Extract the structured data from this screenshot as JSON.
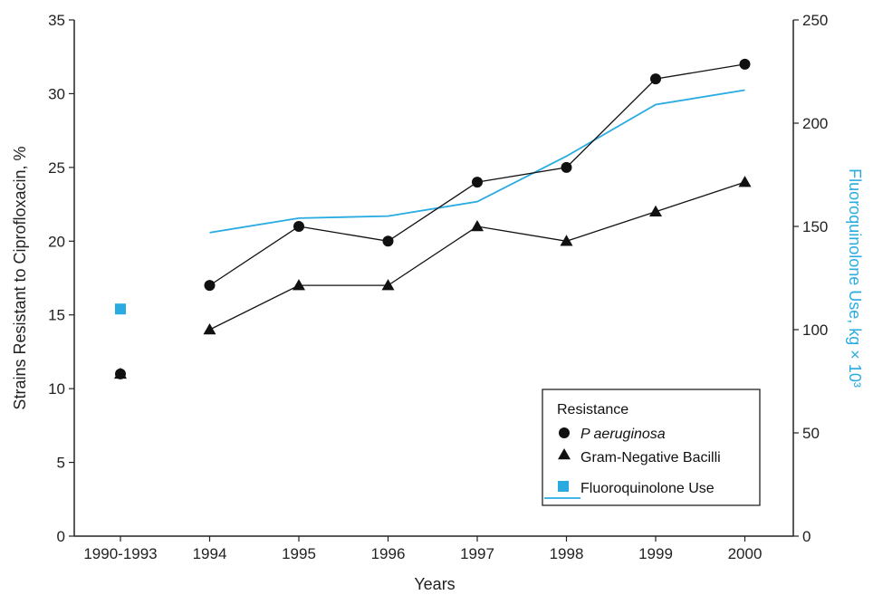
{
  "chart_data": {
    "type": "line",
    "categories": [
      "1990-1993",
      "1994",
      "1995",
      "1996",
      "1997",
      "1998",
      "1999",
      "2000"
    ],
    "xlabel": "Years",
    "ylabel": "Strains Resistant to Ciprofloxacin, %",
    "ylabel_right": "Fluoroquinolone Use, kg × 10³",
    "ylim": [
      0,
      35
    ],
    "yticks": [
      0,
      5,
      10,
      15,
      20,
      25,
      30,
      35
    ],
    "ylim_right": [
      0,
      250
    ],
    "yticks_right": [
      0,
      50,
      100,
      150,
      200,
      250
    ],
    "legend": {
      "title": "Resistance",
      "placement": "bottom-right",
      "entries": [
        "P aeruginosa",
        "Gram-Negative Bacilli",
        "Fluoroquinolone Use"
      ]
    },
    "series": [
      {
        "name": "P aeruginosa",
        "axis": "left",
        "marker": "circle",
        "color": "#111111",
        "values": [
          11,
          17,
          21,
          20,
          24,
          25,
          31,
          32
        ]
      },
      {
        "name": "Gram-Negative Bacilli",
        "axis": "left",
        "marker": "triangle",
        "color": "#111111",
        "values": [
          11,
          14,
          17,
          17,
          21,
          20,
          22,
          24
        ]
      },
      {
        "name": "Fluoroquinolone Use",
        "axis": "right",
        "marker": "line",
        "color": "#29abe2",
        "point_1990_1993": 110,
        "values": [
          null,
          147,
          154,
          155,
          162,
          184,
          209,
          216
        ]
      }
    ]
  }
}
